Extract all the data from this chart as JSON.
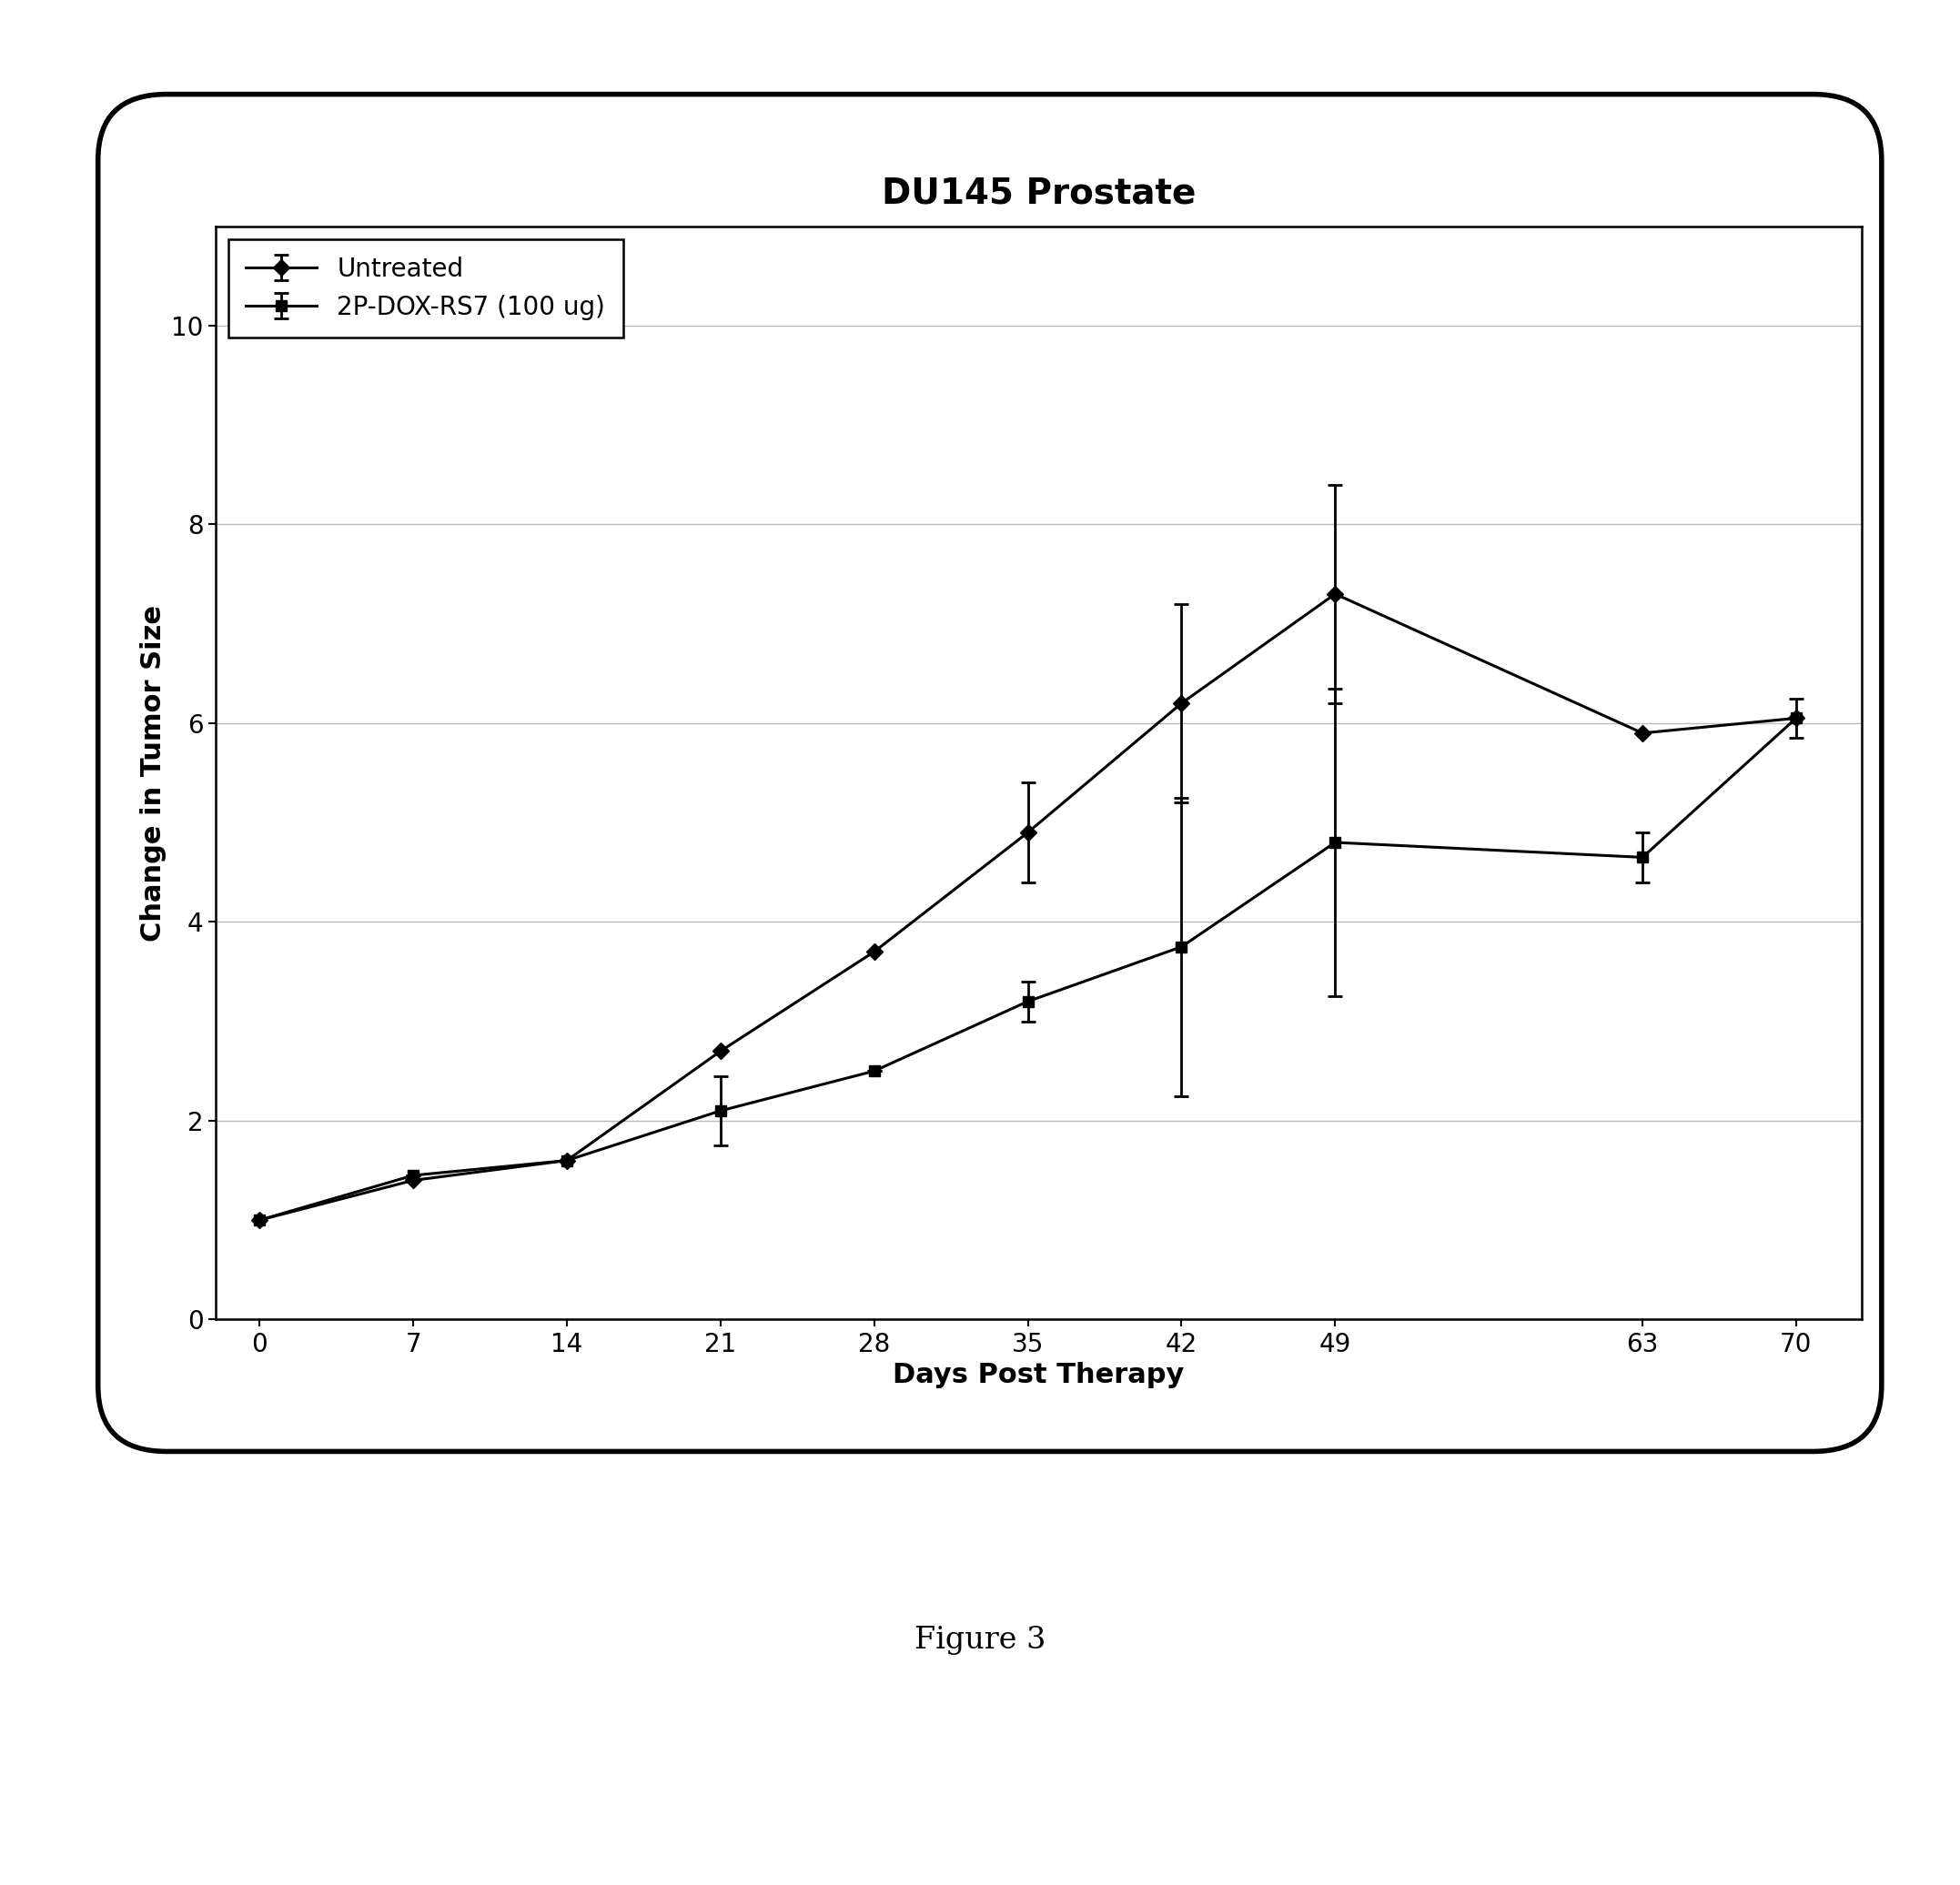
{
  "title": "DU145 Prostate",
  "xlabel": "Days Post Therapy",
  "ylabel": "Change in Tumor Size",
  "figure_caption": "Figure 3",
  "x": [
    0,
    7,
    14,
    21,
    28,
    35,
    42,
    49,
    63,
    70
  ],
  "untreated_y": [
    1.0,
    1.4,
    1.6,
    2.7,
    3.7,
    4.9,
    6.2,
    7.3,
    5.9,
    6.05
  ],
  "untreated_yerr_lo": [
    0.0,
    0.0,
    0.0,
    0.0,
    0.0,
    0.5,
    1.0,
    1.1,
    0.0,
    0.0
  ],
  "untreated_yerr_hi": [
    0.0,
    0.0,
    0.0,
    0.0,
    0.0,
    0.5,
    1.0,
    1.1,
    0.0,
    0.0
  ],
  "treated_y": [
    1.0,
    1.45,
    1.6,
    2.1,
    2.5,
    3.2,
    3.75,
    4.8,
    4.65,
    6.05
  ],
  "treated_yerr_lo": [
    0.0,
    0.0,
    0.0,
    0.35,
    0.0,
    0.2,
    1.5,
    1.55,
    0.25,
    0.2
  ],
  "treated_yerr_hi": [
    0.0,
    0.0,
    0.0,
    0.35,
    0.0,
    0.2,
    1.5,
    1.55,
    0.25,
    0.2
  ],
  "xlim": [
    -2,
    73
  ],
  "ylim": [
    0,
    11
  ],
  "yticks": [
    0,
    2,
    4,
    6,
    8,
    10
  ],
  "xticks": [
    0,
    7,
    14,
    21,
    28,
    35,
    42,
    49,
    63,
    70
  ],
  "legend_labels": [
    "Untreated",
    "2P-DOX-RS7 (100 ug)"
  ],
  "line_color": "#000000",
  "marker_untreated": "D",
  "marker_treated": "s",
  "marker_size": 9,
  "linewidth": 2.2,
  "background_color": "#ffffff",
  "plot_bg_color": "#ffffff",
  "title_fontsize": 28,
  "axis_label_fontsize": 22,
  "tick_fontsize": 20,
  "legend_fontsize": 20,
  "caption_fontsize": 24,
  "grid_color": "#bbbbbb",
  "grid_linewidth": 1.0
}
